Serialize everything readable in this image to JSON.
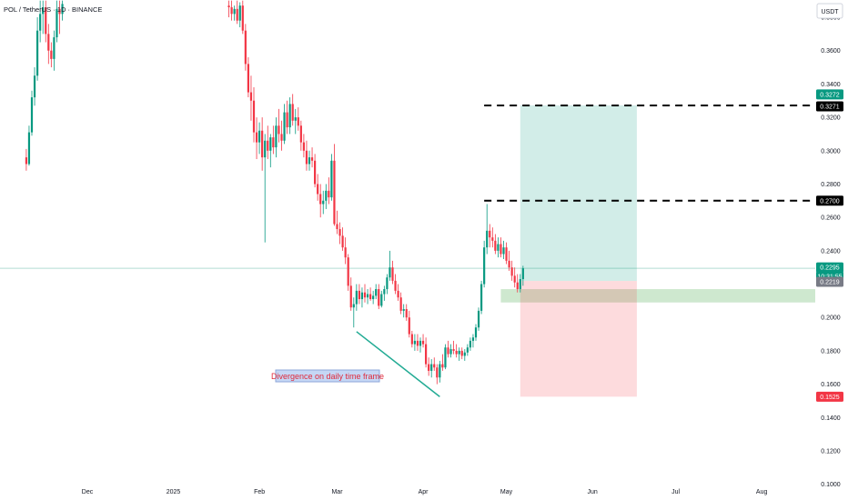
{
  "header": {
    "title": "POL / TetherUS · 1D · BINANCE"
  },
  "axis": {
    "currency_button": "USDT"
  },
  "annotation": "Divergence on daily time frame",
  "chart_data": {
    "type": "candlestick",
    "symbol": "POL / TetherUS",
    "interval": "1D",
    "exchange": "BINANCE",
    "y_ticks": [
      "0.1000",
      "0.1200",
      "0.1400",
      "0.1600",
      "0.1800",
      "0.2000",
      "0.2200",
      "0.2400",
      "0.2600",
      "0.2800",
      "0.3000",
      "0.3200",
      "0.3400",
      "0.3600",
      "0.3800"
    ],
    "x_ticks": [
      "Dec",
      "2025",
      "Feb",
      "Mar",
      "Apr",
      "May",
      "Jun",
      "Jul",
      "Aug"
    ],
    "ylim": [
      0.096,
      0.386
    ],
    "grid": false,
    "price_labels": [
      {
        "value": "0.3272",
        "color": "#089981"
      },
      {
        "value": "0.3271",
        "color": "#000000"
      },
      {
        "value": "0.2700",
        "color": "#000000"
      },
      {
        "value": "0.2295",
        "color": "#089981"
      },
      {
        "value": "10:31:55",
        "color": "#089981"
      },
      {
        "value": "0.2219",
        "color": "#787b86"
      },
      {
        "value": "0.1525",
        "color": "#f23645"
      }
    ],
    "levels": [
      0.3271,
      0.27
    ],
    "current_price": 0.2295,
    "long_position": {
      "entry": 0.2219,
      "target": 0.3272,
      "stop": 0.1525
    },
    "support_zone": [
      0.209,
      0.217
    ],
    "divergence_line": [
      {
        "date": "Mar 8",
        "price": 0.1915
      },
      {
        "date": "Apr 7",
        "price": 0.1525
      }
    ],
    "candles": [
      {
        "date": "Nov 9",
        "open": 0.296,
        "high": 0.301,
        "low": 0.288,
        "close": 0.292
      },
      {
        "date": "Nov 10",
        "open": 0.292,
        "high": 0.315,
        "low": 0.291,
        "close": 0.311
      },
      {
        "date": "Nov 11",
        "open": 0.311,
        "high": 0.336,
        "low": 0.309,
        "close": 0.332
      },
      {
        "date": "Nov 12",
        "open": 0.332,
        "high": 0.35,
        "low": 0.327,
        "close": 0.345
      },
      {
        "date": "Nov 13",
        "open": 0.345,
        "high": 0.38,
        "low": 0.342,
        "close": 0.372
      },
      {
        "date": "Nov 14",
        "open": 0.372,
        "high": 0.39,
        "low": 0.365,
        "close": 0.382
      },
      {
        "date": "Nov 15",
        "open": 0.382,
        "high": 0.39,
        "low": 0.37,
        "close": 0.386
      },
      {
        "date": "Nov 16",
        "open": 0.386,
        "high": 0.39,
        "low": 0.365,
        "close": 0.37
      },
      {
        "date": "Nov 17",
        "open": 0.37,
        "high": 0.376,
        "low": 0.352,
        "close": 0.36
      },
      {
        "date": "Nov 18",
        "open": 0.36,
        "high": 0.365,
        "low": 0.35,
        "close": 0.355
      },
      {
        "date": "Nov 19",
        "open": 0.355,
        "high": 0.372,
        "low": 0.348,
        "close": 0.368
      },
      {
        "date": "Nov 20",
        "open": 0.368,
        "high": 0.39,
        "low": 0.365,
        "close": 0.385
      },
      {
        "date": "Nov 21",
        "open": 0.385,
        "high": 0.39,
        "low": 0.37,
        "close": 0.382
      },
      {
        "date": "Nov 22",
        "open": 0.382,
        "high": 0.39,
        "low": 0.378,
        "close": 0.388
      },
      {
        "date": "Jan 21",
        "open": 0.387,
        "high": 0.39,
        "low": 0.38,
        "close": 0.386
      },
      {
        "date": "Jan 22",
        "open": 0.386,
        "high": 0.39,
        "low": 0.378,
        "close": 0.382
      },
      {
        "date": "Jan 23",
        "open": 0.382,
        "high": 0.387,
        "low": 0.378,
        "close": 0.385
      },
      {
        "date": "Jan 24",
        "open": 0.385,
        "high": 0.39,
        "low": 0.376,
        "close": 0.378
      },
      {
        "date": "Jan 25",
        "open": 0.378,
        "high": 0.389,
        "low": 0.374,
        "close": 0.387
      },
      {
        "date": "Jan 26",
        "open": 0.387,
        "high": 0.39,
        "low": 0.37,
        "close": 0.372
      },
      {
        "date": "Jan 27",
        "open": 0.372,
        "high": 0.376,
        "low": 0.348,
        "close": 0.352
      },
      {
        "date": "Jan 28",
        "open": 0.352,
        "high": 0.356,
        "low": 0.332,
        "close": 0.335
      },
      {
        "date": "Jan 29",
        "open": 0.335,
        "high": 0.345,
        "low": 0.318,
        "close": 0.33
      },
      {
        "date": "Jan 30",
        "open": 0.33,
        "high": 0.338,
        "low": 0.305,
        "close": 0.311
      },
      {
        "date": "Jan 31",
        "open": 0.311,
        "high": 0.32,
        "low": 0.295,
        "close": 0.305
      },
      {
        "date": "Feb 1",
        "open": 0.305,
        "high": 0.317,
        "low": 0.298,
        "close": 0.312
      },
      {
        "date": "Feb 2",
        "open": 0.312,
        "high": 0.32,
        "low": 0.288,
        "close": 0.296
      },
      {
        "date": "Feb 3",
        "open": 0.296,
        "high": 0.31,
        "low": 0.245,
        "close": 0.306
      },
      {
        "date": "Feb 4",
        "open": 0.306,
        "high": 0.315,
        "low": 0.295,
        "close": 0.3
      },
      {
        "date": "Feb 5",
        "open": 0.3,
        "high": 0.31,
        "low": 0.29,
        "close": 0.308
      },
      {
        "date": "Feb 6",
        "open": 0.308,
        "high": 0.315,
        "low": 0.298,
        "close": 0.302
      },
      {
        "date": "Feb 7",
        "open": 0.302,
        "high": 0.32,
        "low": 0.296,
        "close": 0.315
      },
      {
        "date": "Feb 8",
        "open": 0.315,
        "high": 0.325,
        "low": 0.305,
        "close": 0.31
      },
      {
        "date": "Feb 9",
        "open": 0.31,
        "high": 0.318,
        "low": 0.3,
        "close": 0.306
      },
      {
        "date": "Feb 10",
        "open": 0.306,
        "high": 0.328,
        "low": 0.304,
        "close": 0.323
      },
      {
        "date": "Feb 11",
        "open": 0.323,
        "high": 0.33,
        "low": 0.31,
        "close": 0.314
      },
      {
        "date": "Feb 12",
        "open": 0.314,
        "high": 0.332,
        "low": 0.31,
        "close": 0.328
      },
      {
        "date": "Feb 13",
        "open": 0.328,
        "high": 0.334,
        "low": 0.315,
        "close": 0.318
      },
      {
        "date": "Feb 14",
        "open": 0.318,
        "high": 0.325,
        "low": 0.31,
        "close": 0.32
      },
      {
        "date": "Feb 15",
        "open": 0.32,
        "high": 0.326,
        "low": 0.312,
        "close": 0.315
      },
      {
        "date": "Feb 16",
        "open": 0.315,
        "high": 0.318,
        "low": 0.3,
        "close": 0.305
      },
      {
        "date": "Feb 17",
        "open": 0.305,
        "high": 0.31,
        "low": 0.296,
        "close": 0.3
      },
      {
        "date": "Feb 18",
        "open": 0.3,
        "high": 0.306,
        "low": 0.288,
        "close": 0.292
      },
      {
        "date": "Feb 19",
        "open": 0.292,
        "high": 0.3,
        "low": 0.288,
        "close": 0.296
      },
      {
        "date": "Feb 20",
        "open": 0.296,
        "high": 0.302,
        "low": 0.29,
        "close": 0.294
      },
      {
        "date": "Feb 21",
        "open": 0.294,
        "high": 0.298,
        "low": 0.278,
        "close": 0.28
      },
      {
        "date": "Feb 22",
        "open": 0.28,
        "high": 0.286,
        "low": 0.27,
        "close": 0.274
      },
      {
        "date": "Feb 23",
        "open": 0.274,
        "high": 0.28,
        "low": 0.26,
        "close": 0.268
      },
      {
        "date": "Feb 24",
        "open": 0.268,
        "high": 0.276,
        "low": 0.262,
        "close": 0.27
      },
      {
        "date": "Feb 25",
        "open": 0.27,
        "high": 0.28,
        "low": 0.265,
        "close": 0.276
      },
      {
        "date": "Feb 26",
        "open": 0.276,
        "high": 0.284,
        "low": 0.268,
        "close": 0.272
      },
      {
        "date": "Feb 27",
        "open": 0.272,
        "high": 0.298,
        "low": 0.27,
        "close": 0.294
      },
      {
        "date": "Feb 28",
        "open": 0.294,
        "high": 0.304,
        "low": 0.255,
        "close": 0.256
      },
      {
        "date": "Mar 1",
        "open": 0.256,
        "high": 0.264,
        "low": 0.25,
        "close": 0.253
      },
      {
        "date": "Mar 2",
        "open": 0.253,
        "high": 0.257,
        "low": 0.244,
        "close": 0.249
      },
      {
        "date": "Mar 3",
        "open": 0.249,
        "high": 0.254,
        "low": 0.24,
        "close": 0.242
      },
      {
        "date": "Mar 4",
        "open": 0.242,
        "high": 0.248,
        "low": 0.232,
        "close": 0.236
      },
      {
        "date": "Mar 5",
        "open": 0.236,
        "high": 0.238,
        "low": 0.216,
        "close": 0.219
      },
      {
        "date": "Mar 6",
        "open": 0.219,
        "high": 0.224,
        "low": 0.204,
        "close": 0.206
      },
      {
        "date": "Mar 7",
        "open": 0.206,
        "high": 0.212,
        "low": 0.194,
        "close": 0.208
      },
      {
        "date": "Mar 8",
        "open": 0.208,
        "high": 0.22,
        "low": 0.204,
        "close": 0.216
      },
      {
        "date": "Mar 9",
        "open": 0.216,
        "high": 0.22,
        "low": 0.208,
        "close": 0.211
      },
      {
        "date": "Mar 10",
        "open": 0.211,
        "high": 0.218,
        "low": 0.206,
        "close": 0.215
      },
      {
        "date": "Mar 11",
        "open": 0.215,
        "high": 0.22,
        "low": 0.209,
        "close": 0.212
      },
      {
        "date": "Mar 12",
        "open": 0.212,
        "high": 0.217,
        "low": 0.208,
        "close": 0.214
      },
      {
        "date": "Mar 13",
        "open": 0.214,
        "high": 0.218,
        "low": 0.21,
        "close": 0.211
      },
      {
        "date": "Mar 14",
        "open": 0.211,
        "high": 0.216,
        "low": 0.208,
        "close": 0.213
      },
      {
        "date": "Mar 15",
        "open": 0.213,
        "high": 0.22,
        "low": 0.211,
        "close": 0.217
      },
      {
        "date": "Mar 16",
        "open": 0.217,
        "high": 0.22,
        "low": 0.205,
        "close": 0.207
      },
      {
        "date": "Mar 17",
        "open": 0.207,
        "high": 0.216,
        "low": 0.206,
        "close": 0.214
      },
      {
        "date": "Mar 18",
        "open": 0.214,
        "high": 0.219,
        "low": 0.21,
        "close": 0.217
      },
      {
        "date": "Mar 19",
        "open": 0.217,
        "high": 0.226,
        "low": 0.214,
        "close": 0.224
      },
      {
        "date": "Mar 20",
        "open": 0.224,
        "high": 0.24,
        "low": 0.222,
        "close": 0.23
      },
      {
        "date": "Mar 21",
        "open": 0.23,
        "high": 0.234,
        "low": 0.22,
        "close": 0.222
      },
      {
        "date": "Mar 22",
        "open": 0.222,
        "high": 0.226,
        "low": 0.214,
        "close": 0.216
      },
      {
        "date": "Mar 23",
        "open": 0.216,
        "high": 0.22,
        "low": 0.21,
        "close": 0.212
      },
      {
        "date": "Mar 24",
        "open": 0.212,
        "high": 0.215,
        "low": 0.202,
        "close": 0.204
      },
      {
        "date": "Mar 25",
        "open": 0.204,
        "high": 0.208,
        "low": 0.2,
        "close": 0.205
      },
      {
        "date": "Mar 26",
        "open": 0.205,
        "high": 0.208,
        "low": 0.198,
        "close": 0.2
      },
      {
        "date": "Mar 27",
        "open": 0.2,
        "high": 0.204,
        "low": 0.188,
        "close": 0.19
      },
      {
        "date": "Mar 28",
        "open": 0.19,
        "high": 0.192,
        "low": 0.182,
        "close": 0.184
      },
      {
        "date": "Mar 29",
        "open": 0.184,
        "high": 0.19,
        "low": 0.18,
        "close": 0.186
      },
      {
        "date": "Mar 30",
        "open": 0.186,
        "high": 0.19,
        "low": 0.18,
        "close": 0.183
      },
      {
        "date": "Mar 31",
        "open": 0.183,
        "high": 0.188,
        "low": 0.179,
        "close": 0.186
      },
      {
        "date": "Apr 1",
        "open": 0.186,
        "high": 0.19,
        "low": 0.182,
        "close": 0.184
      },
      {
        "date": "Apr 2",
        "open": 0.184,
        "high": 0.188,
        "low": 0.17,
        "close": 0.172
      },
      {
        "date": "Apr 3",
        "open": 0.172,
        "high": 0.176,
        "low": 0.165,
        "close": 0.168
      },
      {
        "date": "Apr 4",
        "open": 0.168,
        "high": 0.175,
        "low": 0.164,
        "close": 0.172
      },
      {
        "date": "Apr 5",
        "open": 0.172,
        "high": 0.176,
        "low": 0.168,
        "close": 0.17
      },
      {
        "date": "Apr 6",
        "open": 0.17,
        "high": 0.172,
        "low": 0.16,
        "close": 0.164
      },
      {
        "date": "Apr 7",
        "open": 0.164,
        "high": 0.174,
        "low": 0.161,
        "close": 0.172
      },
      {
        "date": "Apr 8",
        "open": 0.172,
        "high": 0.178,
        "low": 0.168,
        "close": 0.17
      },
      {
        "date": "Apr 9",
        "open": 0.17,
        "high": 0.184,
        "low": 0.169,
        "close": 0.182
      },
      {
        "date": "Apr 10",
        "open": 0.182,
        "high": 0.186,
        "low": 0.176,
        "close": 0.178
      },
      {
        "date": "Apr 11",
        "open": 0.178,
        "high": 0.184,
        "low": 0.176,
        "close": 0.181
      },
      {
        "date": "Apr 12",
        "open": 0.181,
        "high": 0.186,
        "low": 0.178,
        "close": 0.18
      },
      {
        "date": "Apr 13",
        "open": 0.18,
        "high": 0.184,
        "low": 0.176,
        "close": 0.178
      },
      {
        "date": "Apr 14",
        "open": 0.178,
        "high": 0.182,
        "low": 0.174,
        "close": 0.18
      },
      {
        "date": "Apr 15",
        "open": 0.18,
        "high": 0.182,
        "low": 0.175,
        "close": 0.177
      },
      {
        "date": "Apr 16",
        "open": 0.177,
        "high": 0.181,
        "low": 0.174,
        "close": 0.179
      },
      {
        "date": "Apr 17",
        "open": 0.179,
        "high": 0.184,
        "low": 0.177,
        "close": 0.182
      },
      {
        "date": "Apr 18",
        "open": 0.182,
        "high": 0.188,
        "low": 0.18,
        "close": 0.186
      },
      {
        "date": "Apr 19",
        "open": 0.186,
        "high": 0.19,
        "low": 0.182,
        "close": 0.188
      },
      {
        "date": "Apr 20",
        "open": 0.188,
        "high": 0.196,
        "low": 0.186,
        "close": 0.194
      },
      {
        "date": "Apr 21",
        "open": 0.194,
        "high": 0.206,
        "low": 0.192,
        "close": 0.204
      },
      {
        "date": "Apr 22",
        "open": 0.204,
        "high": 0.222,
        "low": 0.202,
        "close": 0.22
      },
      {
        "date": "Apr 23",
        "open": 0.22,
        "high": 0.246,
        "low": 0.218,
        "close": 0.242
      },
      {
        "date": "Apr 24",
        "open": 0.242,
        "high": 0.268,
        "low": 0.238,
        "close": 0.252
      },
      {
        "date": "Apr 25",
        "open": 0.252,
        "high": 0.256,
        "low": 0.242,
        "close": 0.248
      },
      {
        "date": "Apr 26",
        "open": 0.248,
        "high": 0.254,
        "low": 0.242,
        "close": 0.246
      },
      {
        "date": "Apr 27",
        "open": 0.246,
        "high": 0.25,
        "low": 0.238,
        "close": 0.24
      },
      {
        "date": "Apr 28",
        "open": 0.24,
        "high": 0.248,
        "low": 0.236,
        "close": 0.244
      },
      {
        "date": "Apr 29",
        "open": 0.244,
        "high": 0.248,
        "low": 0.236,
        "close": 0.238
      },
      {
        "date": "Apr 30",
        "open": 0.238,
        "high": 0.246,
        "low": 0.235,
        "close": 0.242
      },
      {
        "date": "May 1",
        "open": 0.242,
        "high": 0.245,
        "low": 0.232,
        "close": 0.234
      },
      {
        "date": "May 2",
        "open": 0.234,
        "high": 0.24,
        "low": 0.228,
        "close": 0.23
      },
      {
        "date": "May 3",
        "open": 0.23,
        "high": 0.234,
        "low": 0.222,
        "close": 0.225
      },
      {
        "date": "May 4",
        "open": 0.225,
        "high": 0.23,
        "low": 0.218,
        "close": 0.221
      },
      {
        "date": "May 5",
        "open": 0.221,
        "high": 0.226,
        "low": 0.215,
        "close": 0.217
      },
      {
        "date": "May 6",
        "open": 0.217,
        "high": 0.226,
        "low": 0.215,
        "close": 0.223
      },
      {
        "date": "May 7",
        "open": 0.223,
        "high": 0.231,
        "low": 0.219,
        "close": 0.2295
      }
    ]
  }
}
